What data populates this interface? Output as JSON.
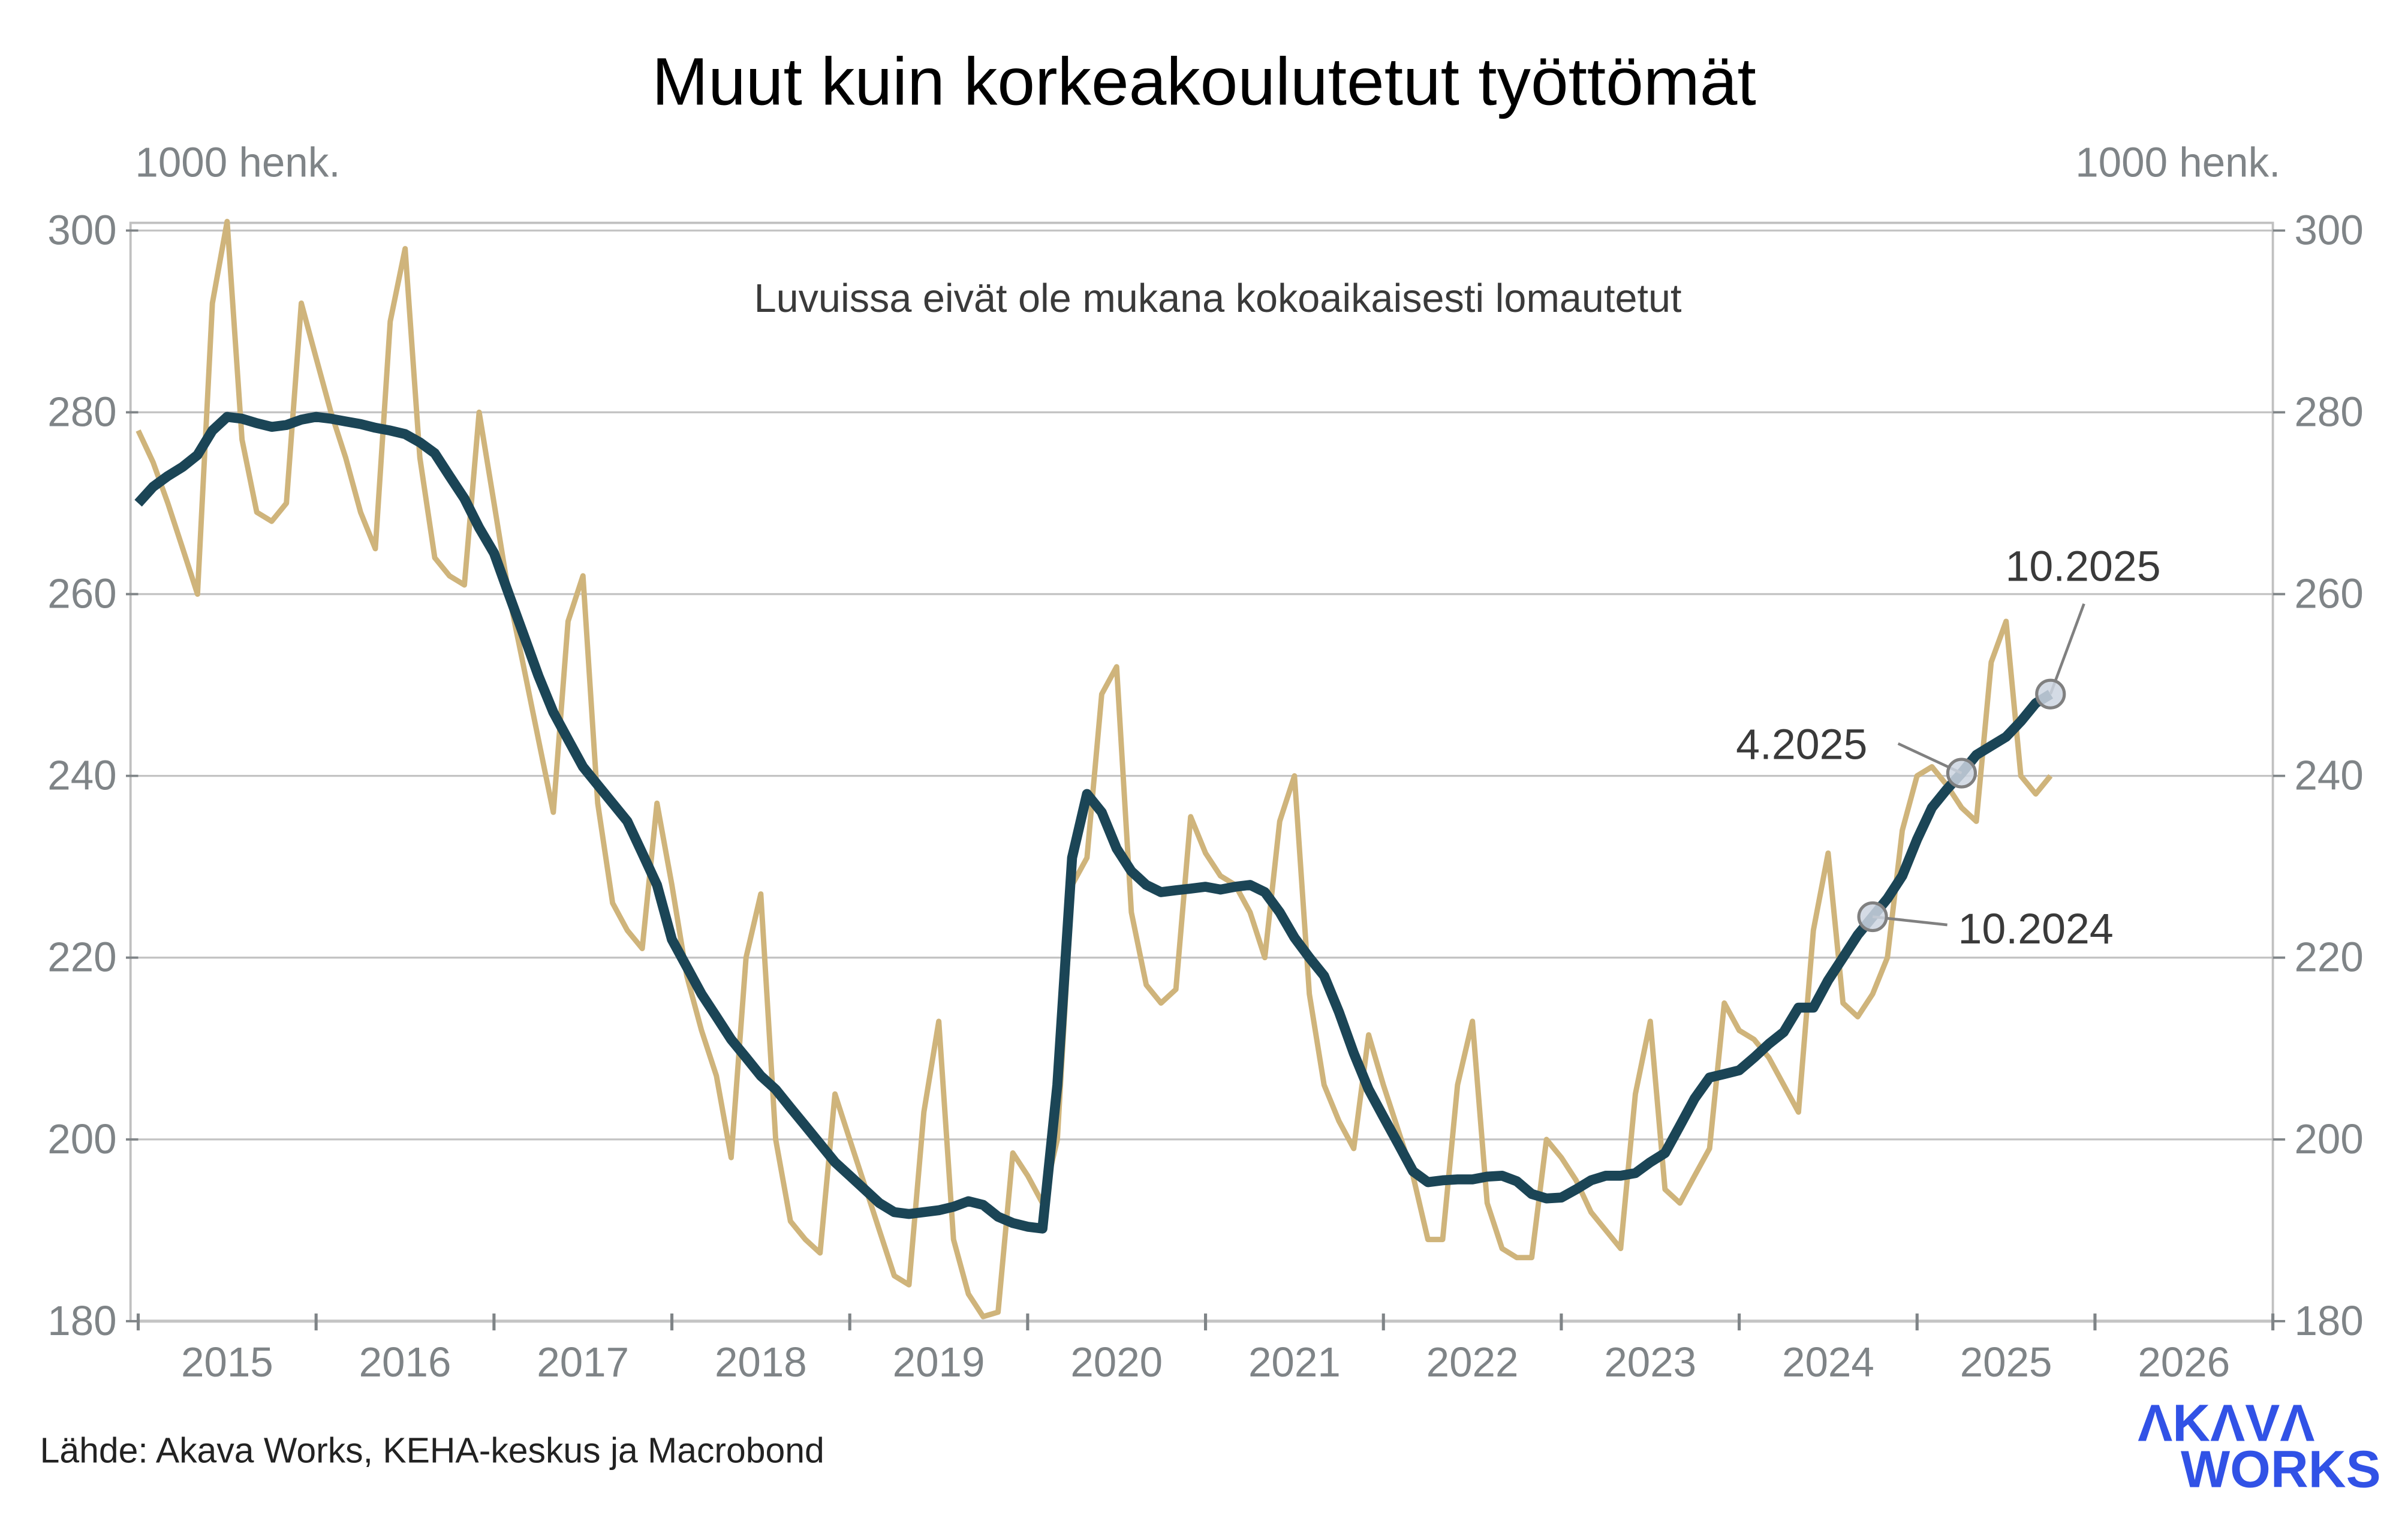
{
  "chart_data": {
    "type": "line",
    "title": "Muut kuin korkeakoulutetut työttömät",
    "ylabel_left": "1000 henk.",
    "ylabel_right": "1000 henk.",
    "note": "Luvuissa eivät ole mukana kokoaikaisesti lomautetut",
    "source": "Lähde: Akava Works, KEHA-keskus ja Macrobond",
    "logo": {
      "line1": "ΛKΛVΛ",
      "line2": "WORKS",
      "color": "#3152e6"
    },
    "ylim": [
      180,
      300
    ],
    "yticks": [
      "180",
      "200",
      "220",
      "240",
      "260",
      "280",
      "300"
    ],
    "xlim": [
      2015,
      2027
    ],
    "xticks": [
      "2015",
      "2016",
      "2017",
      "2018",
      "2019",
      "2020",
      "2021",
      "2022",
      "2023",
      "2024",
      "2025",
      "2026"
    ],
    "grid": true,
    "x_start": "1.2015",
    "x_frequency": "monthly",
    "series": [
      {
        "color": "#cfb47b",
        "values": [
          278,
          274.5,
          270,
          265,
          260,
          292,
          301,
          277,
          269,
          268,
          270,
          292,
          286,
          280,
          275,
          269,
          265,
          290,
          298,
          275,
          264,
          262,
          261,
          280,
          270,
          260,
          252,
          244,
          236,
          257,
          262,
          237,
          226,
          223,
          221,
          237,
          228,
          218,
          212,
          207,
          198,
          220,
          227,
          200,
          191,
          189,
          187.5,
          205,
          200,
          195,
          190,
          185,
          184,
          203,
          213,
          189,
          183,
          180.5,
          181,
          198.5,
          196,
          193,
          200,
          228,
          231,
          249,
          252,
          225,
          217,
          215,
          216.5,
          235.5,
          231.5,
          229,
          228,
          225,
          220,
          235,
          240,
          216,
          206,
          202,
          199,
          211.5,
          206,
          201,
          196,
          189,
          189,
          206,
          213,
          193,
          188,
          187,
          187,
          200,
          198,
          195.5,
          192,
          190,
          188,
          205,
          213,
          194.5,
          193,
          196,
          199,
          215,
          212,
          211,
          209,
          206,
          203,
          223,
          231.5,
          215,
          213.5,
          216,
          220,
          234,
          240,
          241,
          239,
          236.5,
          235,
          252.5,
          257,
          240,
          238,
          240
        ]
      },
      {
        "color": "#1b4556",
        "values": [
          270,
          271.8,
          273,
          274,
          275.3,
          278,
          279.5,
          279.3,
          278.8,
          278.4,
          278.6,
          279.2,
          279.5,
          279.3,
          279,
          278.7,
          278.3,
          278,
          277.6,
          276.7,
          275.5,
          273,
          270.5,
          267.3,
          264.5,
          260,
          255.5,
          251,
          247,
          244,
          241,
          239,
          237,
          235,
          231.5,
          228,
          222,
          219,
          216,
          213.5,
          211,
          209,
          207,
          205.5,
          203.5,
          201.5,
          199.5,
          197.5,
          196,
          194.5,
          193,
          192,
          191.8,
          192,
          192.2,
          192.6,
          193.2,
          192.8,
          191.5,
          190.8,
          190.4,
          190.2,
          206,
          231,
          238,
          236,
          232,
          229.5,
          228,
          227.2,
          227.4,
          227.6,
          227.8,
          227.5,
          227.8,
          228,
          227.2,
          225,
          222.2,
          220,
          218,
          214,
          209.5,
          205.5,
          202.5,
          199.5,
          196.5,
          195.3,
          195.5,
          195.6,
          195.6,
          195.9,
          196,
          195.4,
          194,
          193.5,
          193.6,
          194.5,
          195.5,
          196,
          196,
          196.3,
          197.5,
          198.5,
          201.5,
          204.5,
          206.8,
          207.2,
          207.6,
          209,
          210.5,
          211.8,
          214.5,
          214.5,
          217.5,
          220,
          222.5,
          224.5,
          226.5,
          229,
          233,
          236.5,
          238.5,
          240.3,
          242.3,
          243.3,
          244.3,
          246,
          248,
          249
        ]
      }
    ],
    "annotations": [
      {
        "label": "10.2024",
        "month_index": 117
      },
      {
        "label": "4.2025",
        "month_index": 123
      },
      {
        "label": "10.2025",
        "month_index": 129
      }
    ]
  }
}
